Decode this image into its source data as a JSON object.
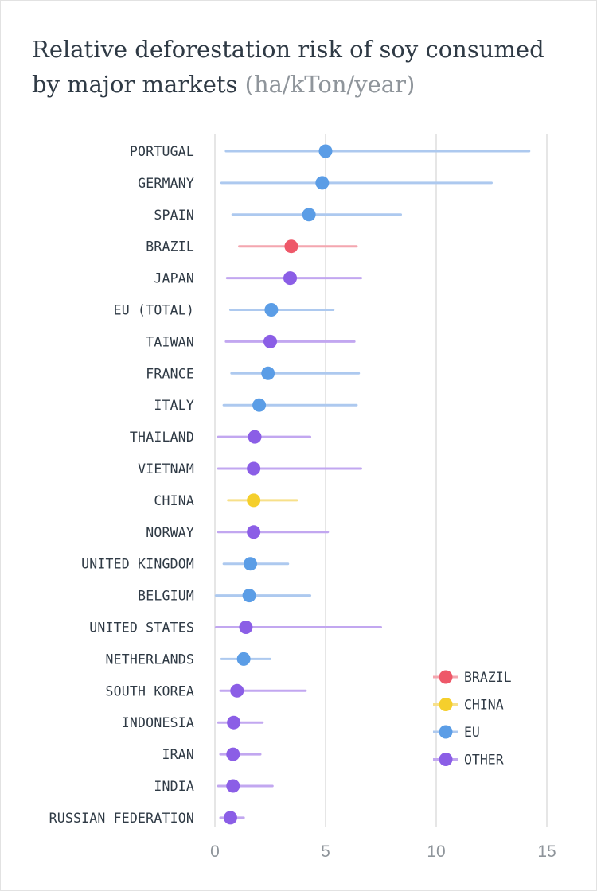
{
  "chart_data": {
    "type": "dot-range",
    "title": "Relative deforestation risk of soy consumed by major markets",
    "unit": "(ha/kTon/year)",
    "xlim": [
      0,
      15
    ],
    "xticks": [
      0,
      5,
      10,
      15
    ],
    "grid": true,
    "legend_position": "bottom-right",
    "colors": {
      "BRAZIL": "#ee5869",
      "CHINA": "#f5cf2c",
      "EU": "#5b9de6",
      "OTHER": "#8b5ee6"
    },
    "range_colors": {
      "BRAZIL": "#f4a6af",
      "CHINA": "#f7e08a",
      "EU": "#adc9ef",
      "OTHER": "#c2a7f0"
    },
    "legend": [
      "BRAZIL",
      "CHINA",
      "EU",
      "OTHER"
    ],
    "rows": [
      {
        "label": "PORTUGAL",
        "group": "EU",
        "low": 0.5,
        "value": 5.0,
        "high": 14.2
      },
      {
        "label": "GERMANY",
        "group": "EU",
        "low": 0.3,
        "value": 4.85,
        "high": 12.5
      },
      {
        "label": "SPAIN",
        "group": "EU",
        "low": 0.8,
        "value": 4.25,
        "high": 8.4
      },
      {
        "label": "BRAZIL",
        "group": "BRAZIL",
        "low": 1.1,
        "value": 3.45,
        "high": 6.4
      },
      {
        "label": "JAPAN",
        "group": "OTHER",
        "low": 0.55,
        "value": 3.4,
        "high": 6.6
      },
      {
        "label": "EU (TOTAL)",
        "group": "EU",
        "low": 0.7,
        "value": 2.55,
        "high": 5.35
      },
      {
        "label": "TAIWAN",
        "group": "OTHER",
        "low": 0.5,
        "value": 2.5,
        "high": 6.3
      },
      {
        "label": "FRANCE",
        "group": "EU",
        "low": 0.75,
        "value": 2.4,
        "high": 6.5
      },
      {
        "label": "ITALY",
        "group": "EU",
        "low": 0.4,
        "value": 2.0,
        "high": 6.4
      },
      {
        "label": "THAILAND",
        "group": "OTHER",
        "low": 0.15,
        "value": 1.8,
        "high": 4.3
      },
      {
        "label": "VIETNAM",
        "group": "OTHER",
        "low": 0.15,
        "value": 1.75,
        "high": 6.6
      },
      {
        "label": "CHINA",
        "group": "CHINA",
        "low": 0.6,
        "value": 1.75,
        "high": 3.7
      },
      {
        "label": "NORWAY",
        "group": "OTHER",
        "low": 0.15,
        "value": 1.75,
        "high": 5.1
      },
      {
        "label": "UNITED KINGDOM",
        "group": "EU",
        "low": 0.4,
        "value": 1.6,
        "high": 3.3
      },
      {
        "label": "BELGIUM",
        "group": "EU",
        "low": 0.05,
        "value": 1.55,
        "high": 4.3
      },
      {
        "label": "UNITED STATES",
        "group": "OTHER",
        "low": 0.05,
        "value": 1.4,
        "high": 7.5
      },
      {
        "label": "NETHERLANDS",
        "group": "EU",
        "low": 0.3,
        "value": 1.3,
        "high": 2.5
      },
      {
        "label": "SOUTH KOREA",
        "group": "OTHER",
        "low": 0.25,
        "value": 1.0,
        "high": 4.1
      },
      {
        "label": "INDONESIA",
        "group": "OTHER",
        "low": 0.15,
        "value": 0.85,
        "high": 2.15
      },
      {
        "label": "IRAN",
        "group": "OTHER",
        "low": 0.25,
        "value": 0.82,
        "high": 2.05
      },
      {
        "label": "INDIA",
        "group": "OTHER",
        "low": 0.15,
        "value": 0.82,
        "high": 2.6
      },
      {
        "label": "RUSSIAN FEDERATION",
        "group": "OTHER",
        "low": 0.25,
        "value": 0.7,
        "high": 1.3
      }
    ]
  }
}
